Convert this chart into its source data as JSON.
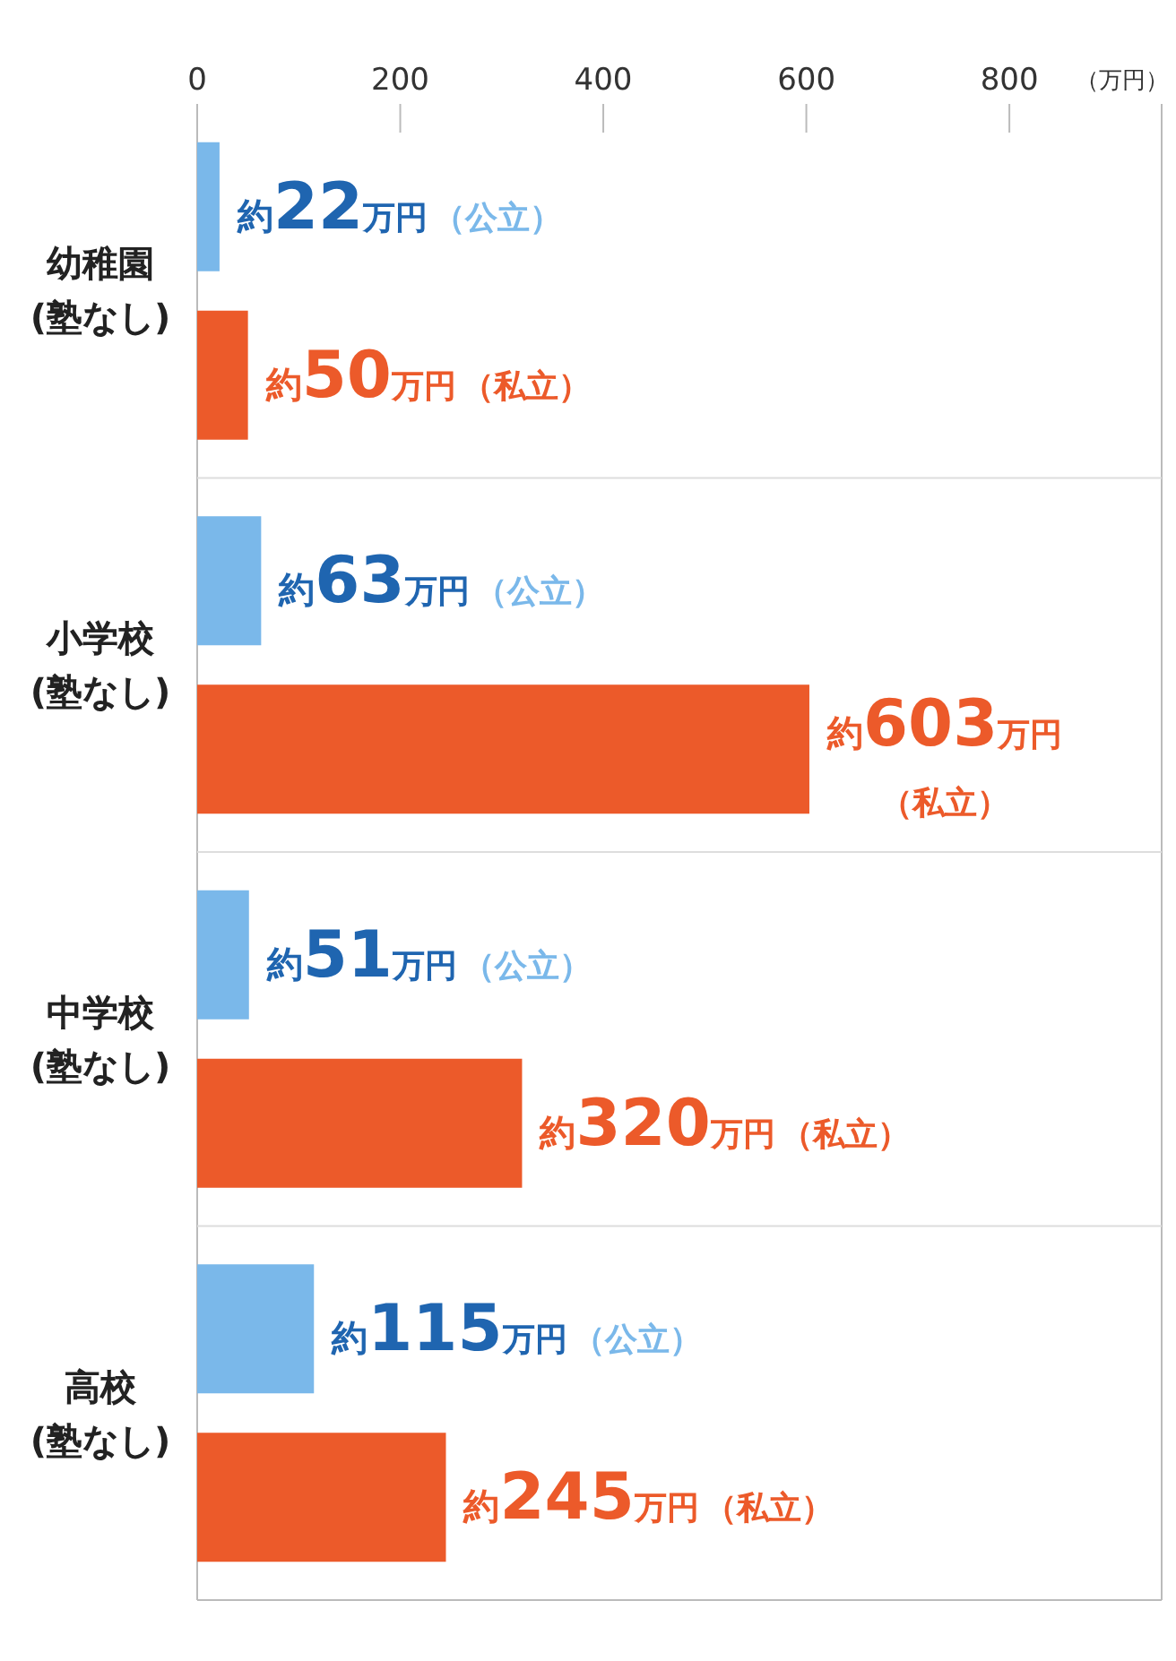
{
  "chart_data": {
    "type": "bar",
    "orientation": "horizontal",
    "xlabel": "（万円）",
    "categories": [
      "幼稚園(塾なし)",
      "小学校(塾なし)",
      "中学校(塾なし)",
      "高校(塾なし)"
    ],
    "series": [
      {
        "name": "（公立）",
        "color": "#7ab8ea",
        "values": [
          22,
          63,
          51,
          115
        ],
        "value_labels": [
          "約22万円",
          "約63万円",
          "約51万円",
          "約115万円"
        ]
      },
      {
        "name": "（私立）",
        "color": "#ec5a2a",
        "values": [
          50,
          603,
          320,
          245
        ],
        "value_labels": [
          "約50万円",
          "約603万円",
          "約320万円",
          "約245万円"
        ]
      }
    ],
    "xlim": [
      0,
      950
    ],
    "xticks": [
      0,
      200,
      400,
      600,
      800
    ],
    "grid": false
  }
}
